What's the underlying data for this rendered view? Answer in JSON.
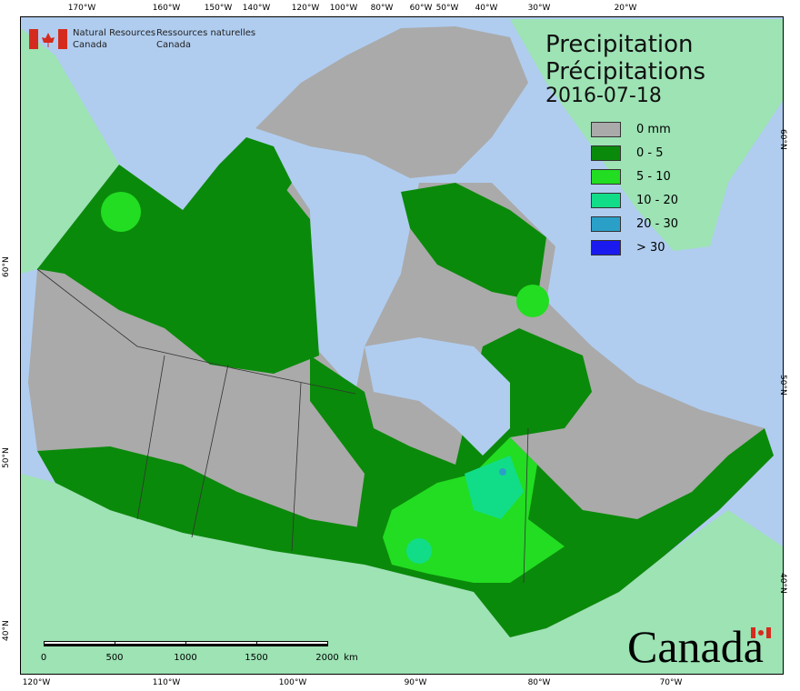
{
  "header": {
    "agency_en": [
      "Natural Resources",
      "Canada"
    ],
    "agency_fr": [
      "Ressources naturelles",
      "Canada"
    ]
  },
  "title": [
    "Precipitation",
    "Précipitations"
  ],
  "date": "2016-07-18",
  "legend": [
    {
      "label": "0 mm",
      "color": "#aaaaaa"
    },
    {
      "label": "0 - 5",
      "color": "#0a8a0a"
    },
    {
      "label": "5 - 10",
      "color": "#22dd22"
    },
    {
      "label": "10 - 20",
      "color": "#11dd88"
    },
    {
      "label": "20 - 30",
      "color": "#2aa0c8"
    },
    {
      "label": "> 30",
      "color": "#1a1aee"
    }
  ],
  "graticule": {
    "top": [
      "170°W",
      "160°W",
      "150°W",
      "140°W",
      "120°W",
      "100°W",
      "80°W",
      "60°W",
      "50°W",
      "40°W",
      "30°W",
      "20°W"
    ],
    "bottom": [
      "120°W",
      "110°W",
      "100°W",
      "90°W",
      "80°W",
      "70°W"
    ],
    "left": [
      "60°N",
      "50°N",
      "40°N"
    ],
    "right": [
      "60°N",
      "50°N",
      "40°N"
    ]
  },
  "scale_bar": {
    "ticks": [
      "0",
      "500",
      "1000",
      "1500",
      "2000"
    ],
    "unit": "km"
  },
  "wordmark": "Canada"
}
